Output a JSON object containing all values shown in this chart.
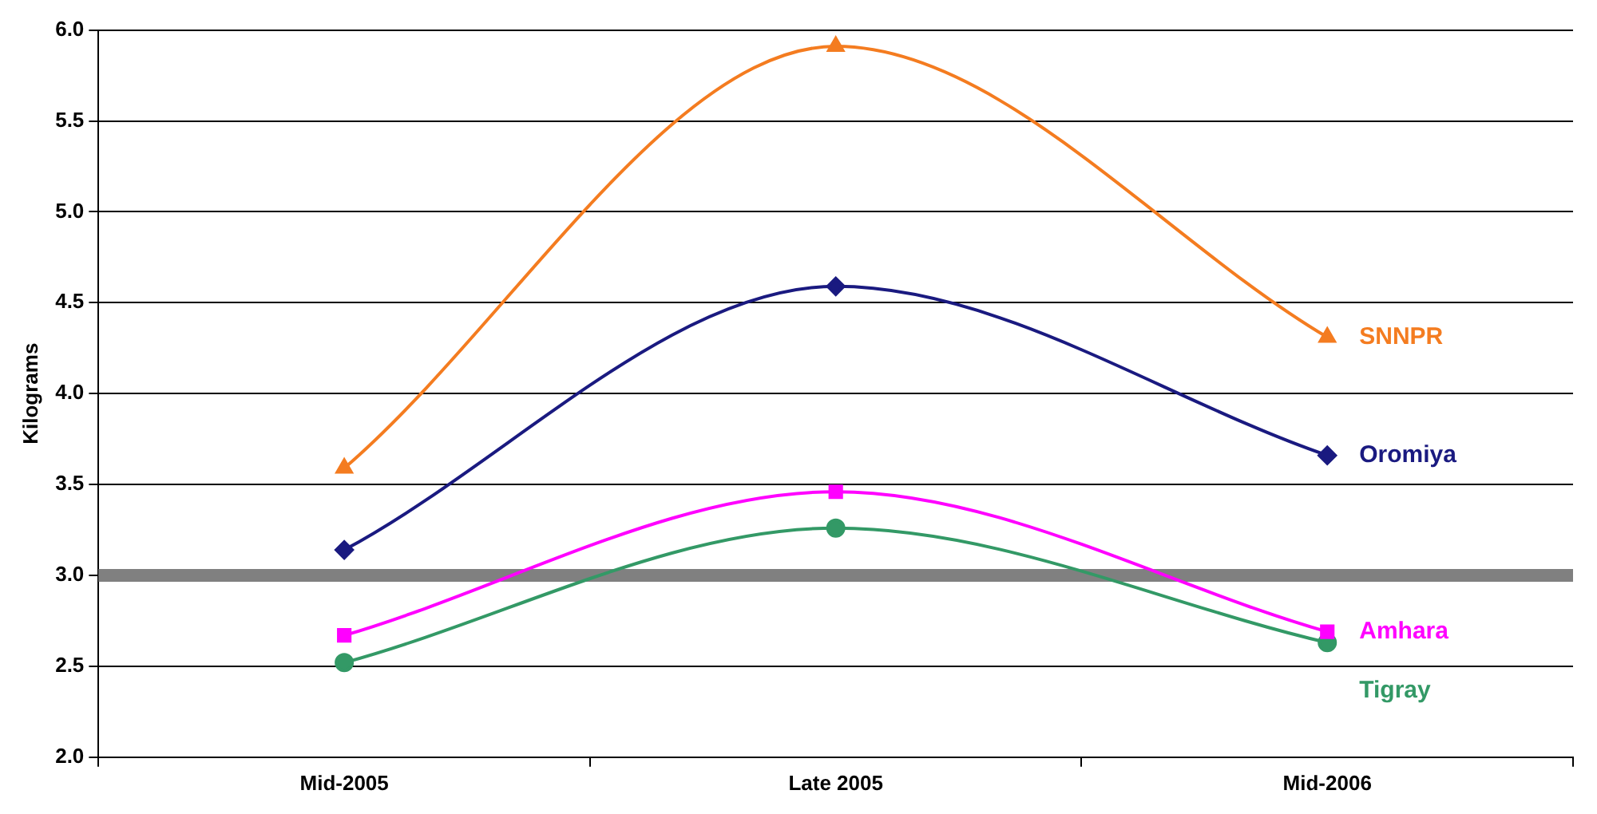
{
  "chart_data": {
    "type": "line",
    "ylabel": "Kilograms",
    "categories": [
      "Mid-2005",
      "Late 2005",
      "Mid-2006"
    ],
    "series": [
      {
        "name": "SNNPR",
        "color": "#f47c20",
        "marker": "triangle",
        "values": [
          3.59,
          5.91,
          4.31
        ]
      },
      {
        "name": "Oromiya",
        "color": "#1a1a80",
        "marker": "diamond",
        "values": [
          3.14,
          4.59,
          3.66
        ]
      },
      {
        "name": "Amhara",
        "color": "#ff00ff",
        "marker": "square",
        "values": [
          2.67,
          3.46,
          2.69
        ]
      },
      {
        "name": "Tigray",
        "color": "#339966",
        "marker": "circle",
        "values": [
          2.52,
          3.26,
          2.63
        ]
      }
    ],
    "ylim": [
      2,
      6
    ],
    "yticks": [
      {
        "value": 2,
        "label": "2.0"
      },
      {
        "value": 2.5,
        "label": "2.5"
      },
      {
        "value": 3,
        "label": "3.0"
      },
      {
        "value": 3.5,
        "label": "3.5"
      },
      {
        "value": 4,
        "label": "4.0"
      },
      {
        "value": 4.5,
        "label": "4.5"
      },
      {
        "value": 5,
        "label": "5.0"
      },
      {
        "value": 5.5,
        "label": "5.5"
      },
      {
        "value": 6,
        "label": "6.0"
      }
    ],
    "ref_lines": [
      {
        "axis": "y",
        "value": 3,
        "color": "#808080"
      }
    ],
    "grid": "y",
    "legend": false
  }
}
